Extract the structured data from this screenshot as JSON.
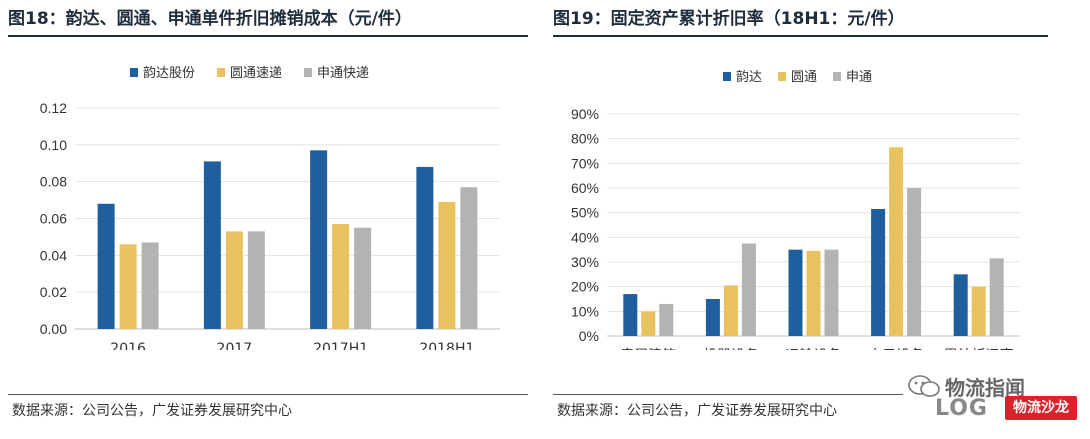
{
  "left": {
    "title": "图18：韵达、圆通、申通单件折旧摊销成本（元/件）",
    "source": "数据来源：公司公告，广发证券发展研究中心"
  },
  "right": {
    "title": "图19：固定资产累计折旧率（18H1：元/件）",
    "source": "数据来源：公司公告，广发证券发展研究中心"
  },
  "watermark": {
    "line1": "物流指闻",
    "logo": "LOG",
    "badge": "物流沙龙"
  },
  "chart_data": [
    {
      "type": "bar",
      "categories": [
        "2016",
        "2017",
        "2017H1",
        "2018H1"
      ],
      "series": [
        {
          "name": "韵达股份",
          "values": [
            0.068,
            0.091,
            0.097,
            0.088
          ]
        },
        {
          "name": "圆通速递",
          "values": [
            0.046,
            0.053,
            0.057,
            0.069
          ]
        },
        {
          "name": "申通快递",
          "values": [
            0.047,
            0.053,
            0.055,
            0.077
          ]
        }
      ],
      "yticks": [
        "0.00",
        "0.02",
        "0.04",
        "0.06",
        "0.08",
        "0.10",
        "0.12"
      ],
      "ylim": [
        0,
        0.12
      ],
      "grid": true,
      "legend_position": "top-center",
      "colors": [
        "#1f5f9e",
        "#e8c25e",
        "#b3b3b3"
      ]
    },
    {
      "type": "bar",
      "categories": [
        "房屋建筑",
        "机器设备",
        "运输设备",
        "电子设备",
        "累计折旧率"
      ],
      "series": [
        {
          "name": "韵达",
          "values": [
            0.17,
            0.15,
            0.35,
            0.515,
            0.25
          ]
        },
        {
          "name": "圆通",
          "values": [
            0.1,
            0.205,
            0.345,
            0.765,
            0.2
          ]
        },
        {
          "name": "申通",
          "values": [
            0.13,
            0.375,
            0.35,
            0.6,
            0.315
          ]
        }
      ],
      "yticks": [
        "0%",
        "10%",
        "20%",
        "30%",
        "40%",
        "50%",
        "60%",
        "70%",
        "80%",
        "90%"
      ],
      "ylim": [
        0,
        0.9
      ],
      "grid": true,
      "legend_position": "top-center",
      "colors": [
        "#1f5f9e",
        "#e8c25e",
        "#b3b3b3"
      ]
    }
  ]
}
